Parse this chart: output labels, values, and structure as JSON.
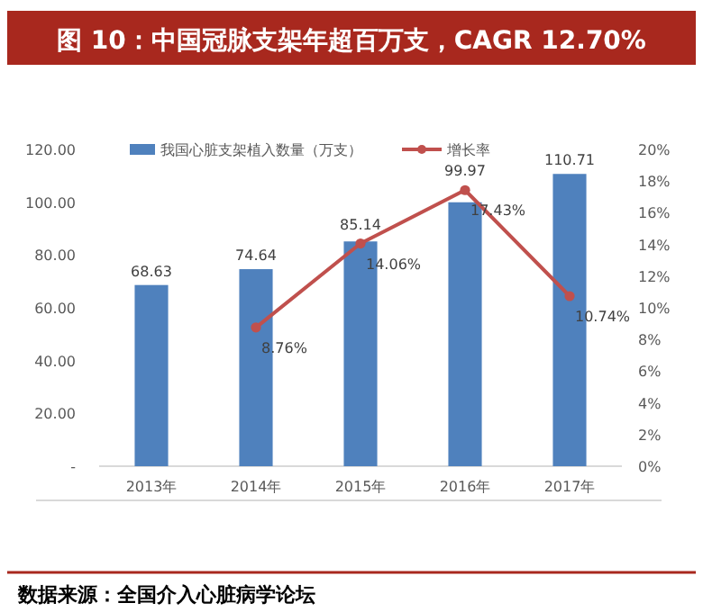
{
  "chart_data": {
    "type": "bar",
    "title": "图 10：中国冠脉支架年超百万支，CAGR 12.70%",
    "categories": [
      "2013年",
      "2014年",
      "2015年",
      "2016年",
      "2017年"
    ],
    "series": [
      {
        "name": "我国心脏支架植入数量（万支）",
        "color": "#4f81bd",
        "values": [
          68.63,
          74.64,
          85.14,
          99.97,
          110.71
        ],
        "value_labels": [
          "68.63",
          "74.64",
          "85.14",
          "99.97",
          "110.71"
        ]
      },
      {
        "name": "增长率",
        "type": "line",
        "axis": "y2",
        "color": "#c0504d",
        "values": [
          null,
          8.76,
          14.06,
          17.43,
          10.74
        ],
        "value_labels": [
          null,
          "8.76%",
          "14.06%",
          "17.43%",
          "10.74%"
        ]
      }
    ],
    "ylim": [
      0,
      120
    ],
    "yticks": [
      {
        "value": 0,
        "label": "-"
      },
      {
        "value": 20,
        "label": "20.00"
      },
      {
        "value": 40,
        "label": "40.00"
      },
      {
        "value": 60,
        "label": "60.00"
      },
      {
        "value": 80,
        "label": "80.00"
      },
      {
        "value": 100,
        "label": "100.00"
      },
      {
        "value": 120,
        "label": "120.00"
      }
    ],
    "y2lim": [
      0,
      20
    ],
    "y2ticks": [
      {
        "value": 0,
        "label": "0%"
      },
      {
        "value": 2,
        "label": "2%"
      },
      {
        "value": 4,
        "label": "4%"
      },
      {
        "value": 6,
        "label": "6%"
      },
      {
        "value": 8,
        "label": "8%"
      },
      {
        "value": 10,
        "label": "10%"
      },
      {
        "value": 12,
        "label": "12%"
      },
      {
        "value": 14,
        "label": "14%"
      },
      {
        "value": 16,
        "label": "16%"
      },
      {
        "value": 18,
        "label": "18%"
      },
      {
        "value": 20,
        "label": "20%"
      }
    ],
    "marker": "circle",
    "line_style": "solid",
    "legend": "top",
    "annotations": [
      "数据来源：全国介入心脏病学论坛"
    ]
  }
}
